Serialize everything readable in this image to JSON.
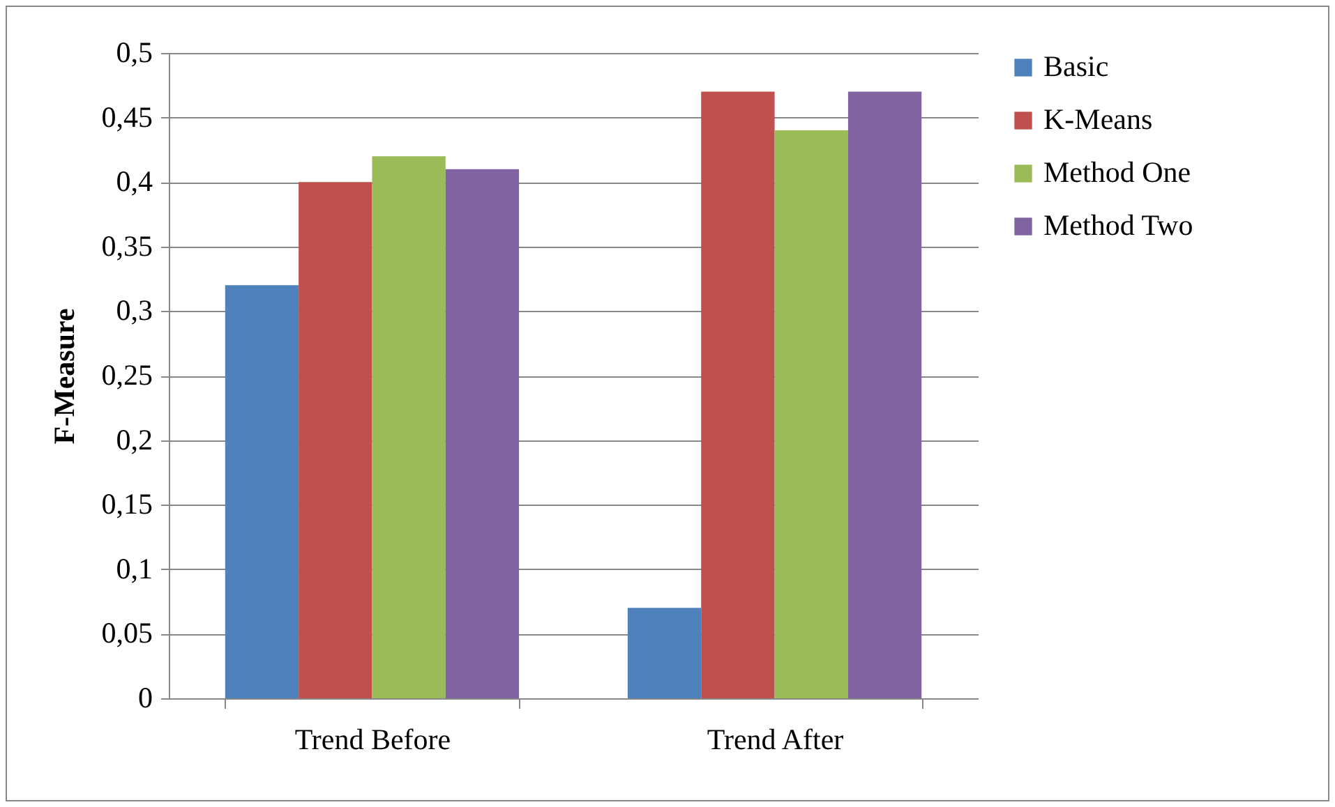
{
  "chart_data": {
    "type": "bar",
    "ylabel": "F-Measure",
    "categories": [
      "Trend Before",
      "Trend After"
    ],
    "series": [
      {
        "name": "Basic",
        "color": "#4f81bd",
        "values": [
          0.32,
          0.07
        ]
      },
      {
        "name": "K-Means",
        "color": "#c0504d",
        "values": [
          0.4,
          0.47
        ]
      },
      {
        "name": "Method One",
        "color": "#9bbb59",
        "values": [
          0.42,
          0.44
        ]
      },
      {
        "name": "Method Two",
        "color": "#8064a2",
        "values": [
          0.41,
          0.47
        ]
      }
    ],
    "ylim": [
      0,
      0.5
    ],
    "yticks": [
      0,
      {
        "value": 0.05,
        "label": "0,05"
      },
      {
        "value": 0.1,
        "label": "0,1"
      },
      {
        "value": 0.15,
        "label": "0,15"
      },
      {
        "value": 0.2,
        "label": "0,2"
      },
      {
        "value": 0.25,
        "label": "0,25"
      },
      {
        "value": 0.3,
        "label": "0,3"
      },
      {
        "value": 0.35,
        "label": "0,35"
      },
      {
        "value": 0.4,
        "label": "0,4"
      },
      {
        "value": 0.45,
        "label": "0,45"
      },
      {
        "value": 0.5,
        "label": "0,5"
      }
    ],
    "grid": "y",
    "legend": "right"
  }
}
